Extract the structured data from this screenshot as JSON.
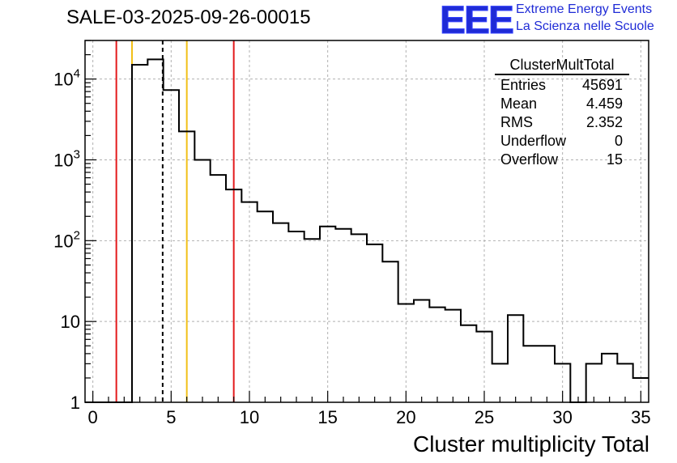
{
  "title": "SALE-03-2025-09-26-00015",
  "logo": {
    "mark": "EEE",
    "line1": "Extreme Energy Events",
    "line2": "La Scienza nelle Scuole",
    "color": "#1f2bd6"
  },
  "stats": {
    "name": "ClusterMultTotal",
    "rows": [
      {
        "label": "Entries",
        "value": "45691"
      },
      {
        "label": "Mean",
        "value": "4.459"
      },
      {
        "label": "RMS",
        "value": "2.352"
      },
      {
        "label": "Underflow",
        "value": "0"
      },
      {
        "label": "Overflow",
        "value": "15"
      }
    ]
  },
  "chart_data": {
    "type": "histogram",
    "xlabel": "Cluster multiplicity Total",
    "ylabel": "",
    "xlim": [
      -0.5,
      35.5
    ],
    "ylim": [
      1,
      30000
    ],
    "yscale": "log",
    "grid": true,
    "bin_width": 1,
    "bin_start": -0.5,
    "values": [
      0,
      0,
      0,
      15000,
      17500,
      7300,
      2250,
      1000,
      650,
      430,
      300,
      230,
      165,
      130,
      105,
      150,
      140,
      120,
      90,
      55,
      16.5,
      18.5,
      15,
      14,
      9,
      7.5,
      3,
      12,
      5,
      5,
      3,
      0,
      3,
      4,
      3,
      2
    ],
    "xticks": [
      0,
      5,
      10,
      15,
      20,
      25,
      30,
      35
    ],
    "xtick_labels": [
      "0",
      "5",
      "10",
      "15",
      "20",
      "25",
      "30",
      "35"
    ],
    "yticks": [
      1,
      10,
      100,
      1000,
      10000
    ],
    "ytick_labels": [
      "1",
      "10",
      "10^2",
      "10^3",
      "10^4"
    ],
    "vertical_lines": [
      {
        "x": 1.5,
        "color": "#e31a1c",
        "style": "solid"
      },
      {
        "x": 2.5,
        "color": "#f2c018",
        "style": "solid"
      },
      {
        "x": 4.459,
        "color": "#000000",
        "style": "dashed"
      },
      {
        "x": 6.0,
        "color": "#f2c018",
        "style": "solid"
      },
      {
        "x": 9.0,
        "color": "#e31a1c",
        "style": "solid"
      }
    ]
  }
}
